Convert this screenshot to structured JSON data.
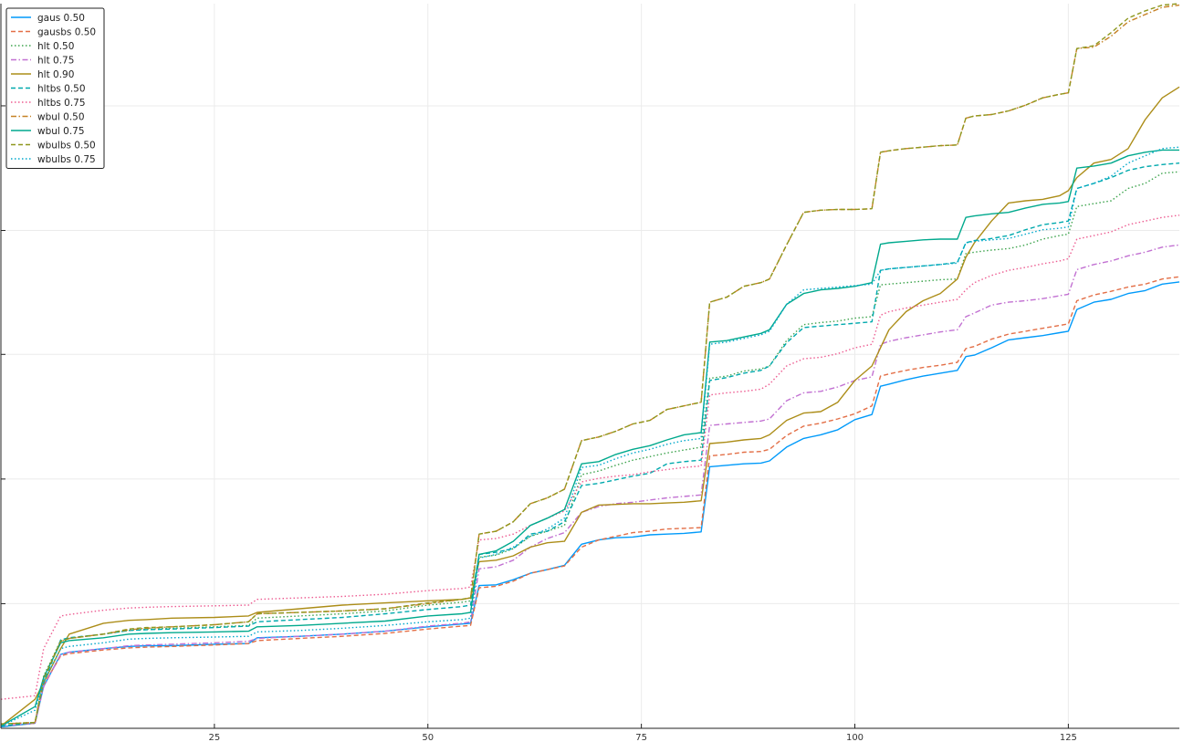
{
  "chart_data": {
    "type": "line",
    "title": "",
    "xlabel": "",
    "ylabel": "",
    "xlim": [
      0,
      138
    ],
    "ylim": [
      0,
      1
    ],
    "grid": true,
    "legend_position": "top-left",
    "x_ticks": [
      25,
      50,
      75,
      100,
      125
    ],
    "x_tick_labels": [
      "25",
      "50",
      "75",
      "100",
      "125"
    ],
    "y_gridlines": [
      0.172,
      0.344,
      0.516,
      0.687,
      0.859
    ],
    "x": [
      0,
      4,
      5,
      7,
      8,
      12,
      15,
      17,
      20,
      25,
      29,
      30,
      35,
      40,
      45,
      50,
      54,
      55,
      56,
      58,
      60,
      62,
      64,
      66,
      68,
      70,
      72,
      74,
      76,
      78,
      80,
      82,
      83,
      85,
      87,
      89,
      90,
      92,
      94,
      96,
      98,
      100,
      102,
      103,
      104,
      106,
      108,
      110,
      112,
      113,
      114,
      116,
      118,
      120,
      122,
      124,
      125,
      126,
      128,
      130,
      132,
      134,
      136,
      138
    ],
    "series": [
      {
        "name": "gaus 0.50",
        "color": "#009AFA",
        "dash": "solid",
        "values": [
          0.002,
          0.007,
          0.058,
          0.102,
          0.105,
          0.11,
          0.113,
          0.114,
          0.114,
          0.116,
          0.117,
          0.125,
          0.127,
          0.13,
          0.134,
          0.14,
          0.144,
          0.145,
          0.197,
          0.198,
          0.205,
          0.214,
          0.219,
          0.225,
          0.254,
          0.26,
          0.263,
          0.264,
          0.267,
          0.268,
          0.269,
          0.271,
          0.361,
          0.363,
          0.365,
          0.366,
          0.369,
          0.388,
          0.4,
          0.405,
          0.412,
          0.426,
          0.433,
          0.472,
          0.475,
          0.481,
          0.486,
          0.49,
          0.494,
          0.513,
          0.515,
          0.525,
          0.536,
          0.539,
          0.542,
          0.546,
          0.548,
          0.578,
          0.588,
          0.592,
          0.6,
          0.604,
          0.613,
          0.616
        ]
      },
      {
        "name": "gausbs 0.50",
        "color": "#E36F47",
        "dash": "dashed",
        "values": [
          0.003,
          0.007,
          0.06,
          0.1,
          0.103,
          0.108,
          0.111,
          0.112,
          0.113,
          0.115,
          0.117,
          0.121,
          0.124,
          0.127,
          0.131,
          0.137,
          0.141,
          0.142,
          0.194,
          0.196,
          0.203,
          0.214,
          0.219,
          0.224,
          0.25,
          0.26,
          0.265,
          0.27,
          0.272,
          0.275,
          0.276,
          0.277,
          0.376,
          0.378,
          0.381,
          0.382,
          0.385,
          0.404,
          0.417,
          0.421,
          0.427,
          0.434,
          0.445,
          0.486,
          0.489,
          0.494,
          0.498,
          0.501,
          0.505,
          0.524,
          0.527,
          0.537,
          0.544,
          0.548,
          0.552,
          0.556,
          0.558,
          0.59,
          0.598,
          0.603,
          0.609,
          0.613,
          0.62,
          0.623
        ]
      },
      {
        "name": "hlt 0.50",
        "color": "#3EA44E",
        "dash": "dotted",
        "values": [
          0.006,
          0.008,
          0.072,
          0.121,
          0.124,
          0.13,
          0.135,
          0.137,
          0.138,
          0.14,
          0.142,
          0.152,
          0.155,
          0.158,
          0.162,
          0.17,
          0.174,
          0.176,
          0.236,
          0.239,
          0.248,
          0.265,
          0.272,
          0.28,
          0.35,
          0.355,
          0.363,
          0.37,
          0.375,
          0.38,
          0.384,
          0.388,
          0.483,
          0.486,
          0.493,
          0.496,
          0.5,
          0.535,
          0.557,
          0.56,
          0.562,
          0.566,
          0.568,
          0.612,
          0.613,
          0.615,
          0.617,
          0.619,
          0.62,
          0.655,
          0.657,
          0.66,
          0.662,
          0.667,
          0.675,
          0.68,
          0.682,
          0.72,
          0.724,
          0.728,
          0.745,
          0.752,
          0.766,
          0.768
        ]
      },
      {
        "name": "hlt 0.75",
        "color": "#C271D2",
        "dash": "dashdot",
        "values": [
          0.003,
          0.007,
          0.057,
          0.102,
          0.105,
          0.11,
          0.114,
          0.115,
          0.116,
          0.118,
          0.12,
          0.124,
          0.127,
          0.13,
          0.134,
          0.141,
          0.145,
          0.147,
          0.22,
          0.223,
          0.232,
          0.25,
          0.262,
          0.27,
          0.298,
          0.306,
          0.31,
          0.312,
          0.315,
          0.318,
          0.32,
          0.322,
          0.418,
          0.42,
          0.422,
          0.424,
          0.427,
          0.452,
          0.463,
          0.465,
          0.471,
          0.48,
          0.485,
          0.53,
          0.534,
          0.539,
          0.543,
          0.547,
          0.55,
          0.568,
          0.573,
          0.584,
          0.588,
          0.59,
          0.593,
          0.597,
          0.599,
          0.633,
          0.64,
          0.645,
          0.652,
          0.657,
          0.664,
          0.667
        ]
      },
      {
        "name": "hlt 0.90",
        "color": "#AC8D18",
        "dash": "solid",
        "values": [
          0.003,
          0.04,
          0.063,
          0.11,
          0.13,
          0.145,
          0.149,
          0.15,
          0.152,
          0.153,
          0.155,
          0.16,
          0.165,
          0.17,
          0.173,
          0.176,
          0.178,
          0.18,
          0.23,
          0.232,
          0.238,
          0.25,
          0.256,
          0.258,
          0.298,
          0.308,
          0.309,
          0.31,
          0.31,
          0.311,
          0.312,
          0.314,
          0.393,
          0.395,
          0.398,
          0.4,
          0.405,
          0.425,
          0.435,
          0.437,
          0.45,
          0.48,
          0.5,
          0.525,
          0.55,
          0.575,
          0.59,
          0.6,
          0.62,
          0.65,
          0.67,
          0.7,
          0.725,
          0.728,
          0.73,
          0.735,
          0.742,
          0.76,
          0.78,
          0.785,
          0.8,
          0.84,
          0.87,
          0.885
        ]
      },
      {
        "name": "hltbs 0.50",
        "color": "#00A9AD",
        "dash": "dashed",
        "values": [
          0.003,
          0.008,
          0.063,
          0.122,
          0.125,
          0.13,
          0.135,
          0.136,
          0.137,
          0.139,
          0.141,
          0.147,
          0.15,
          0.153,
          0.158,
          0.164,
          0.168,
          0.17,
          0.24,
          0.243,
          0.248,
          0.268,
          0.272,
          0.285,
          0.335,
          0.338,
          0.343,
          0.348,
          0.352,
          0.365,
          0.368,
          0.37,
          0.48,
          0.484,
          0.49,
          0.494,
          0.5,
          0.532,
          0.553,
          0.555,
          0.557,
          0.559,
          0.561,
          0.632,
          0.634,
          0.636,
          0.638,
          0.64,
          0.643,
          0.67,
          0.673,
          0.676,
          0.68,
          0.688,
          0.695,
          0.698,
          0.7,
          0.745,
          0.752,
          0.76,
          0.77,
          0.775,
          0.778,
          0.78
        ]
      },
      {
        "name": "hltbs 0.75",
        "color": "#ED5D92",
        "dash": "dotted",
        "values": [
          0.04,
          0.045,
          0.11,
          0.155,
          0.157,
          0.163,
          0.166,
          0.167,
          0.168,
          0.169,
          0.17,
          0.178,
          0.18,
          0.182,
          0.185,
          0.19,
          0.193,
          0.195,
          0.26,
          0.262,
          0.268,
          0.28,
          0.29,
          0.3,
          0.34,
          0.345,
          0.348,
          0.35,
          0.354,
          0.357,
          0.36,
          0.362,
          0.46,
          0.463,
          0.465,
          0.468,
          0.475,
          0.5,
          0.51,
          0.512,
          0.517,
          0.525,
          0.53,
          0.57,
          0.575,
          0.58,
          0.584,
          0.588,
          0.592,
          0.605,
          0.615,
          0.625,
          0.632,
          0.636,
          0.641,
          0.645,
          0.648,
          0.675,
          0.68,
          0.685,
          0.695,
          0.7,
          0.705,
          0.708
        ]
      },
      {
        "name": "wbul 0.50",
        "color": "#C68125",
        "dash": "dashdot",
        "values": [
          0.006,
          0.008,
          0.07,
          0.12,
          0.124,
          0.13,
          0.136,
          0.138,
          0.14,
          0.143,
          0.147,
          0.158,
          0.16,
          0.162,
          0.165,
          0.172,
          0.178,
          0.18,
          0.268,
          0.272,
          0.285,
          0.31,
          0.318,
          0.33,
          0.397,
          0.402,
          0.41,
          0.42,
          0.425,
          0.44,
          0.445,
          0.45,
          0.588,
          0.595,
          0.61,
          0.615,
          0.62,
          0.667,
          0.712,
          0.715,
          0.716,
          0.716,
          0.717,
          0.795,
          0.797,
          0.8,
          0.802,
          0.804,
          0.805,
          0.842,
          0.845,
          0.847,
          0.852,
          0.86,
          0.87,
          0.875,
          0.877,
          0.938,
          0.94,
          0.955,
          0.975,
          0.985,
          0.995,
          0.998
        ]
      },
      {
        "name": "wbul 0.75",
        "color": "#00A98D",
        "dash": "solid",
        "values": [
          0.003,
          0.03,
          0.07,
          0.118,
          0.121,
          0.125,
          0.13,
          0.131,
          0.132,
          0.133,
          0.134,
          0.14,
          0.142,
          0.145,
          0.148,
          0.155,
          0.158,
          0.16,
          0.24,
          0.245,
          0.258,
          0.28,
          0.29,
          0.302,
          0.365,
          0.368,
          0.378,
          0.385,
          0.39,
          0.398,
          0.405,
          0.408,
          0.533,
          0.535,
          0.54,
          0.545,
          0.55,
          0.585,
          0.6,
          0.605,
          0.607,
          0.61,
          0.615,
          0.668,
          0.67,
          0.672,
          0.674,
          0.675,
          0.675,
          0.705,
          0.707,
          0.71,
          0.712,
          0.718,
          0.723,
          0.725,
          0.727,
          0.773,
          0.776,
          0.78,
          0.79,
          0.795,
          0.798,
          0.798
        ]
      },
      {
        "name": "wbulbs 0.50",
        "color": "#8E971D",
        "dash": "dashed",
        "values": [
          0.006,
          0.008,
          0.068,
          0.12,
          0.124,
          0.13,
          0.137,
          0.139,
          0.14,
          0.143,
          0.147,
          0.158,
          0.16,
          0.162,
          0.165,
          0.173,
          0.178,
          0.18,
          0.268,
          0.272,
          0.285,
          0.31,
          0.318,
          0.33,
          0.397,
          0.402,
          0.41,
          0.42,
          0.425,
          0.44,
          0.445,
          0.45,
          0.588,
          0.595,
          0.61,
          0.615,
          0.62,
          0.667,
          0.712,
          0.715,
          0.716,
          0.716,
          0.717,
          0.795,
          0.797,
          0.8,
          0.802,
          0.804,
          0.805,
          0.842,
          0.845,
          0.847,
          0.852,
          0.86,
          0.87,
          0.875,
          0.877,
          0.938,
          0.942,
          0.96,
          0.98,
          0.99,
          0.998,
          1.0
        ]
      },
      {
        "name": "wbulbs 0.75",
        "color": "#00A8CB",
        "dash": "dotted",
        "values": [
          0.003,
          0.025,
          0.065,
          0.11,
          0.113,
          0.118,
          0.123,
          0.124,
          0.125,
          0.126,
          0.127,
          0.133,
          0.135,
          0.138,
          0.142,
          0.147,
          0.15,
          0.152,
          0.235,
          0.24,
          0.25,
          0.265,
          0.275,
          0.29,
          0.36,
          0.363,
          0.372,
          0.38,
          0.385,
          0.392,
          0.397,
          0.4,
          0.53,
          0.533,
          0.538,
          0.543,
          0.548,
          0.585,
          0.605,
          0.607,
          0.609,
          0.611,
          0.613,
          0.632,
          0.634,
          0.636,
          0.638,
          0.64,
          0.642,
          0.67,
          0.672,
          0.674,
          0.676,
          0.682,
          0.688,
          0.69,
          0.692,
          0.745,
          0.752,
          0.762,
          0.78,
          0.79,
          0.8,
          0.802
        ]
      }
    ]
  }
}
